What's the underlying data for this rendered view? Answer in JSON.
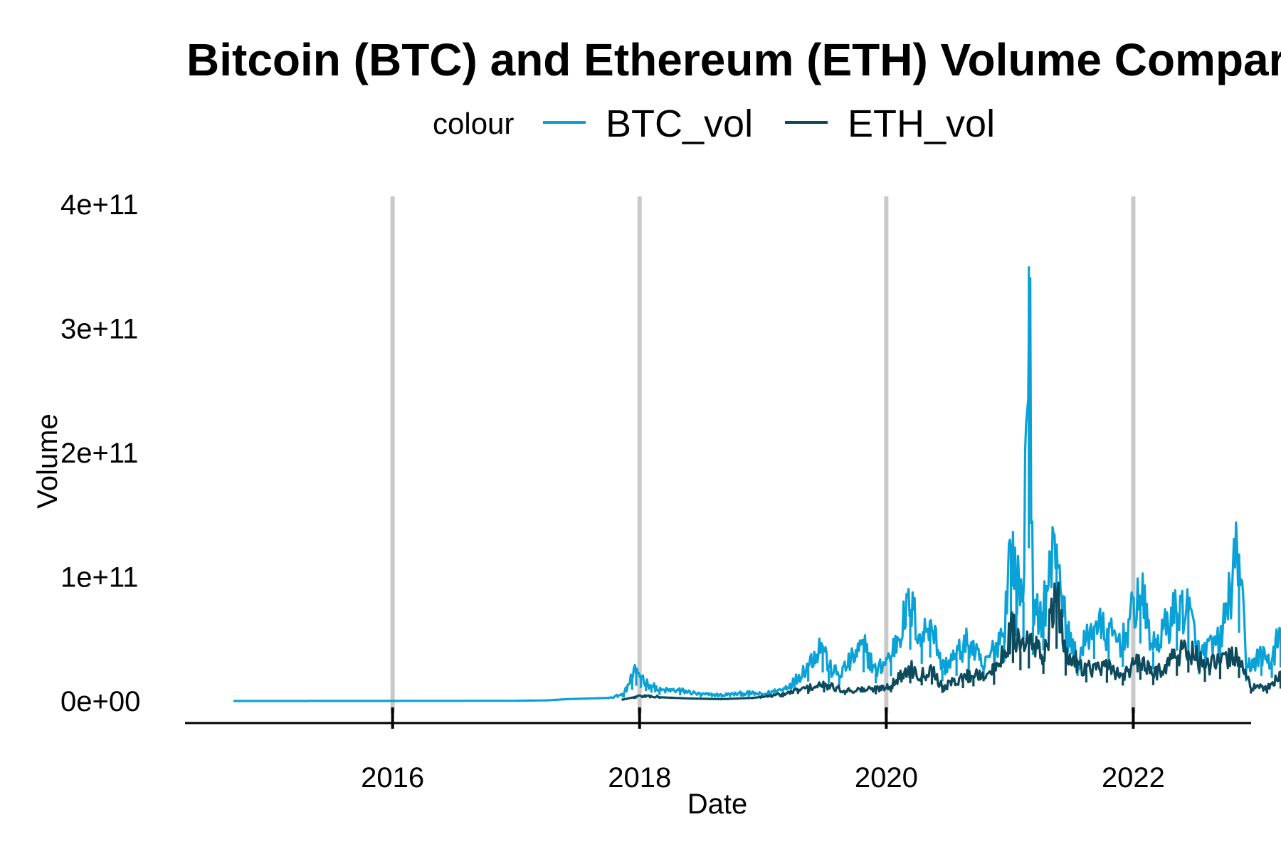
{
  "chart_data": {
    "type": "line",
    "title": "Bitcoin (BTC) and Ethereum (ETH) Volume Comparison",
    "xlabel": "Date",
    "ylabel": "Volume",
    "legend_title": "colour",
    "legend_position": "top",
    "x_ticks": [
      "2016",
      "2018",
      "2020",
      "2022"
    ],
    "y_ticks": [
      "0e+00",
      "1e+11",
      "2e+11",
      "3e+11",
      "4e+11"
    ],
    "xlim": [
      "2014-09-17",
      "2023-03-31"
    ],
    "ylim": [
      0,
      400000000000
    ],
    "grid": "major vertical only",
    "series": [
      {
        "name": "BTC_vol",
        "color": "#0aa2d6",
        "points": [
          [
            "2014-09-17",
            20000000.0
          ],
          [
            "2015-06-01",
            30000000.0
          ],
          [
            "2016-01-01",
            80000000.0
          ],
          [
            "2016-06-01",
            120000000.0
          ],
          [
            "2017-01-01",
            200000000.0
          ],
          [
            "2017-04-01",
            500000000.0
          ],
          [
            "2017-06-01",
            1500000000.0
          ],
          [
            "2017-08-01",
            2000000000.0
          ],
          [
            "2017-10-01",
            2500000000.0
          ],
          [
            "2017-11-15",
            5000000000.0
          ],
          [
            "2017-12-10",
            18000000000.0
          ],
          [
            "2017-12-22",
            23000000000.0
          ],
          [
            "2018-01-05",
            20000000000.0
          ],
          [
            "2018-01-20",
            14000000000.0
          ],
          [
            "2018-02-05",
            12000000000.0
          ],
          [
            "2018-03-01",
            8000000000.0
          ],
          [
            "2018-05-01",
            8000000000.0
          ],
          [
            "2018-07-01",
            5000000000.0
          ],
          [
            "2018-09-01",
            4500000000.0
          ],
          [
            "2018-11-20",
            6000000000.0
          ],
          [
            "2019-01-01",
            5000000000.0
          ],
          [
            "2019-03-01",
            9000000000.0
          ],
          [
            "2019-04-05",
            15000000000.0
          ],
          [
            "2019-05-15",
            28000000000.0
          ],
          [
            "2019-06-27",
            45000000000.0
          ],
          [
            "2019-07-15",
            25000000000.0
          ],
          [
            "2019-08-15",
            20000000000.0
          ],
          [
            "2019-10-26",
            42000000000.0
          ],
          [
            "2019-12-01",
            22000000000.0
          ],
          [
            "2020-01-15",
            35000000000.0
          ],
          [
            "2020-03-12",
            74000000000.0
          ],
          [
            "2020-04-15",
            45000000000.0
          ],
          [
            "2020-05-10",
            65000000000.0
          ],
          [
            "2020-06-15",
            25000000000.0
          ],
          [
            "2020-07-27",
            35000000000.0
          ],
          [
            "2020-09-01",
            45000000000.0
          ],
          [
            "2020-10-15",
            25000000000.0
          ],
          [
            "2020-11-15",
            40000000000.0
          ],
          [
            "2020-12-15",
            55000000000.0
          ],
          [
            "2021-01-04",
            123000000000.0
          ],
          [
            "2021-01-20",
            90000000000.0
          ],
          [
            "2021-02-10",
            80000000000.0
          ],
          [
            "2021-02-26",
            350000000000.0
          ],
          [
            "2021-03-10",
            60000000000.0
          ],
          [
            "2021-04-10",
            70000000000.0
          ],
          [
            "2021-05-19",
            126000000000.0
          ],
          [
            "2021-06-15",
            55000000000.0
          ],
          [
            "2021-07-20",
            30000000000.0
          ],
          [
            "2021-09-07",
            60000000000.0
          ],
          [
            "2021-10-20",
            50000000000.0
          ],
          [
            "2021-12-01",
            45000000000.0
          ],
          [
            "2022-01-22",
            84000000000.0
          ],
          [
            "2022-03-01",
            40000000000.0
          ],
          [
            "2022-05-10",
            70000000000.0
          ],
          [
            "2022-06-13",
            70000000000.0
          ],
          [
            "2022-07-15",
            35000000000.0
          ],
          [
            "2022-09-15",
            45000000000.0
          ],
          [
            "2022-11-10",
            118000000000.0
          ],
          [
            "2022-12-01",
            25000000000.0
          ],
          [
            "2023-01-15",
            35000000000.0
          ],
          [
            "2023-02-15",
            30000000000.0
          ],
          [
            "2023-03-13",
            55000000000.0
          ],
          [
            "2023-03-31",
            25000000000.0
          ]
        ]
      },
      {
        "name": "ETH_vol",
        "color": "#0d4a5c",
        "points": [
          [
            "2017-11-09",
            1000000000.0
          ],
          [
            "2017-12-15",
            3000000000.0
          ],
          [
            "2018-01-10",
            4000000000.0
          ],
          [
            "2018-03-01",
            3000000000.0
          ],
          [
            "2018-06-01",
            2000000000.0
          ],
          [
            "2018-09-01",
            1500000000.0
          ],
          [
            "2018-12-01",
            2500000000.0
          ],
          [
            "2019-03-01",
            5000000000.0
          ],
          [
            "2019-05-15",
            10000000000.0
          ],
          [
            "2019-07-01",
            12000000000.0
          ],
          [
            "2019-09-01",
            8000000000.0
          ],
          [
            "2019-12-01",
            9000000000.0
          ],
          [
            "2020-01-15",
            12000000000.0
          ],
          [
            "2020-03-12",
            25000000000.0
          ],
          [
            "2020-04-15",
            20000000000.0
          ],
          [
            "2020-05-15",
            25000000000.0
          ],
          [
            "2020-06-15",
            10000000000.0
          ],
          [
            "2020-08-15",
            18000000000.0
          ],
          [
            "2020-09-15",
            20000000000.0
          ],
          [
            "2020-11-15",
            22000000000.0
          ],
          [
            "2021-01-10",
            55000000000.0
          ],
          [
            "2021-02-01",
            40000000000.0
          ],
          [
            "2021-02-26",
            45000000000.0
          ],
          [
            "2021-04-10",
            35000000000.0
          ],
          [
            "2021-05-19",
            80000000000.0
          ],
          [
            "2021-06-15",
            35000000000.0
          ],
          [
            "2021-08-15",
            25000000000.0
          ],
          [
            "2021-10-15",
            25000000000.0
          ],
          [
            "2021-12-01",
            20000000000.0
          ],
          [
            "2022-01-22",
            30000000000.0
          ],
          [
            "2022-03-01",
            20000000000.0
          ],
          [
            "2022-05-10",
            35000000000.0
          ],
          [
            "2022-06-13",
            40000000000.0
          ],
          [
            "2022-08-01",
            25000000000.0
          ],
          [
            "2022-09-15",
            30000000000.0
          ],
          [
            "2022-11-10",
            35000000000.0
          ],
          [
            "2022-12-15",
            10000000000.0
          ],
          [
            "2023-02-01",
            10000000000.0
          ],
          [
            "2023-03-13",
            20000000000.0
          ],
          [
            "2023-03-31",
            10000000000.0
          ]
        ]
      }
    ]
  }
}
